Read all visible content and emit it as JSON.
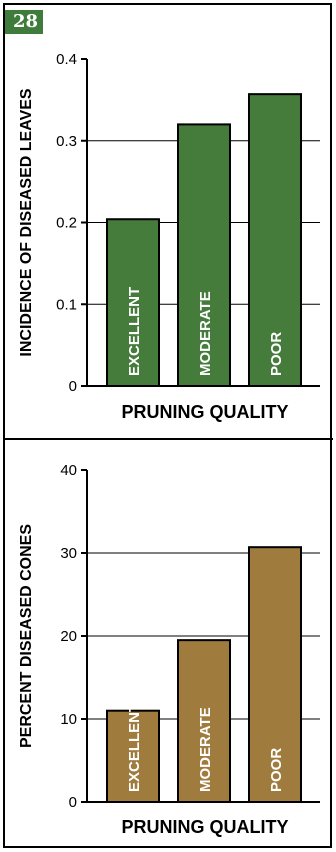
{
  "figure": {
    "number": "28"
  },
  "chart_data": [
    {
      "type": "bar",
      "categories": [
        "EXCELLENT",
        "MODERATE",
        "POOR"
      ],
      "values": [
        0.204,
        0.32,
        0.357
      ],
      "ylabel": "INCIDENCE OF DISEASED LEAVES",
      "xlabel": "PRUNING QUALITY",
      "ylim": [
        0,
        0.4
      ],
      "yticks": [
        0,
        0.1,
        0.2,
        0.3,
        0.4
      ],
      "ytick_labels": [
        "0",
        "0.1",
        "0.2",
        "0.3",
        "0.4"
      ],
      "bar_color": "#457c3c",
      "grid": "horizontal",
      "bar_label_color": "#ffffff"
    },
    {
      "type": "bar",
      "categories": [
        "EXCELLENT",
        "MODERATE",
        "POOR"
      ],
      "values": [
        11,
        19.5,
        30.7
      ],
      "ylabel": "PERCENT DISEASED CONES",
      "xlabel": "PRUNING QUALITY",
      "ylim": [
        0,
        40
      ],
      "yticks": [
        0,
        10,
        20,
        30,
        40
      ],
      "ytick_labels": [
        "0",
        "10",
        "20",
        "30",
        "40"
      ],
      "bar_color": "#a07b3e",
      "grid": "horizontal",
      "bar_label_color": "#ffffff",
      "label_overflow_color": "#000000"
    }
  ]
}
